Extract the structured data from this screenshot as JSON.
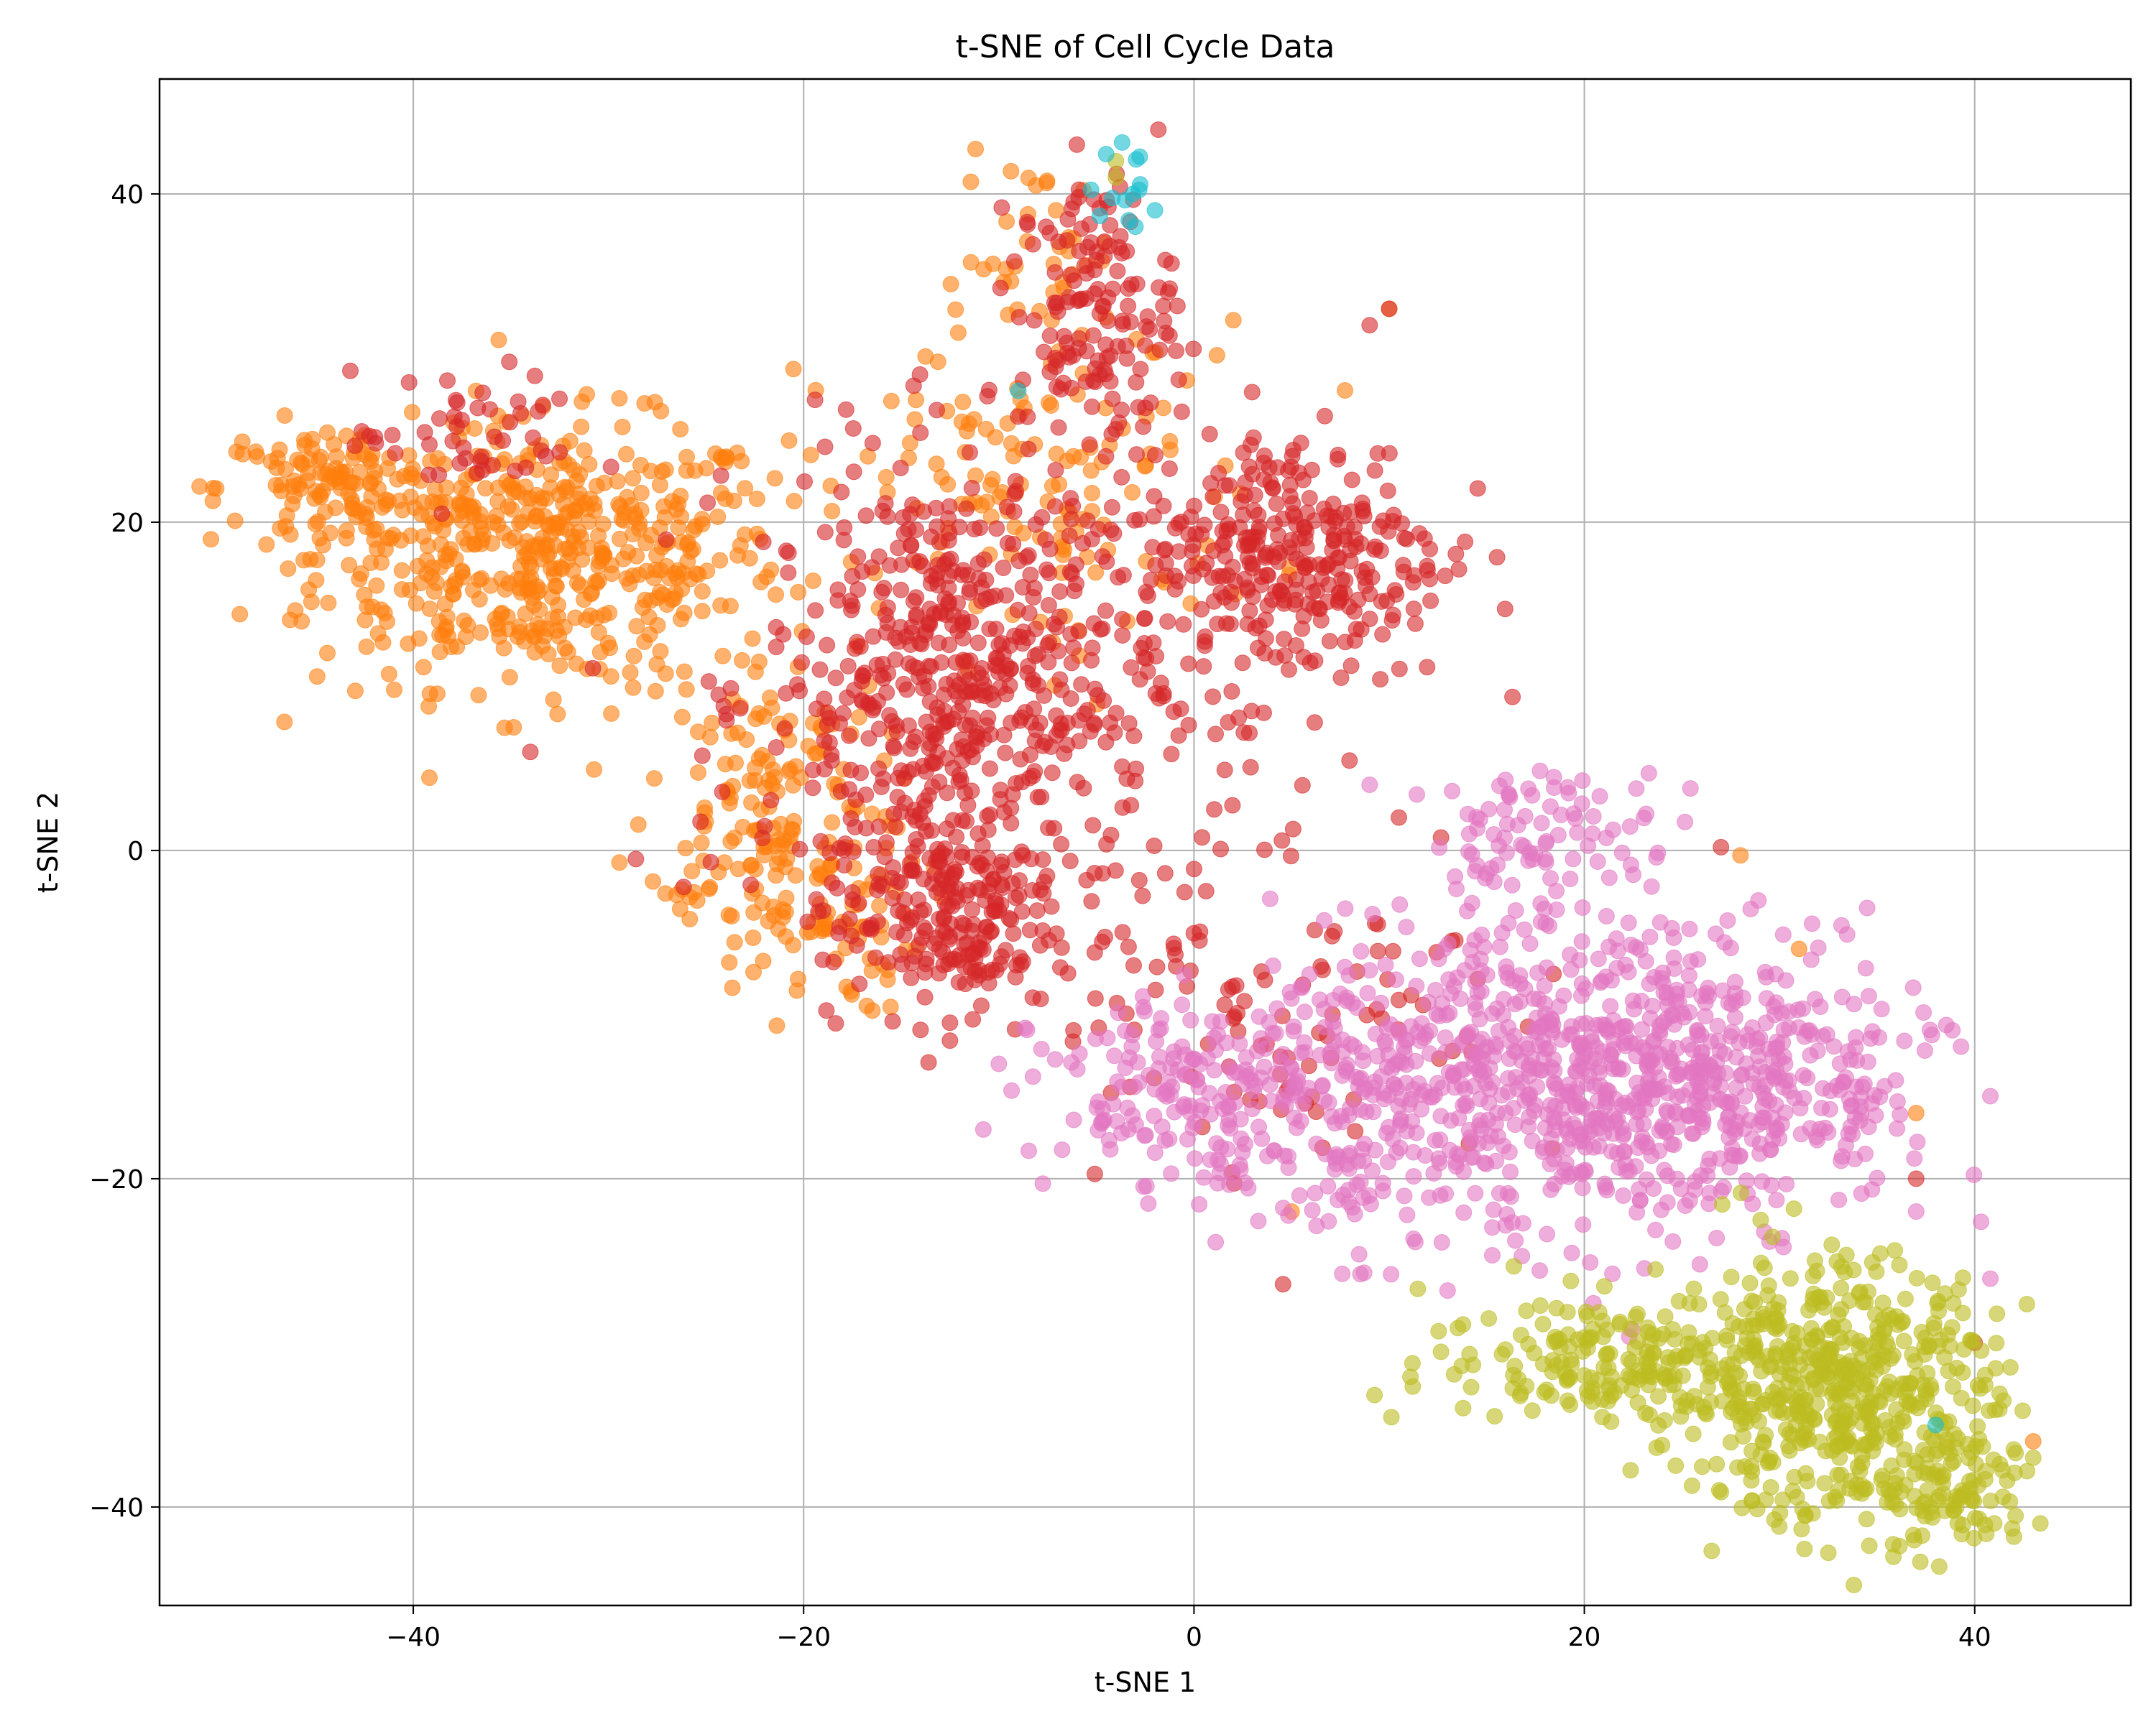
{
  "chart_data": {
    "type": "scatter",
    "title": "t-SNE of Cell Cycle Data",
    "xlabel": "t-SNE 1",
    "ylabel": "t-SNE 2",
    "xlim": [
      -53,
      48
    ],
    "ylim": [
      -46,
      47
    ],
    "xticks": [
      -40,
      -20,
      0,
      20,
      40
    ],
    "yticks": [
      -40,
      -20,
      0,
      20,
      40
    ],
    "xtick_labels": [
      "−40",
      "−20",
      "0",
      "20",
      "40"
    ],
    "ytick_labels": [
      "−40",
      "−20",
      "0",
      "20",
      "40"
    ],
    "grid": true,
    "legend": "none",
    "marker_alpha": 0.6,
    "series": [
      {
        "color": "#ff7f0e",
        "clusters": [
          {
            "center": [
              -33,
              18
            ],
            "spread": [
              6,
              4
            ],
            "n": 520
          },
          {
            "center": [
              -44,
              22
            ],
            "spread": [
              3,
              2
            ],
            "n": 120
          },
          {
            "center": [
              -22,
              4
            ],
            "spread": [
              3,
              4
            ],
            "n": 120
          },
          {
            "center": [
              -20,
              -4
            ],
            "spread": [
              3,
              3
            ],
            "n": 100
          },
          {
            "center": [
              -8,
              22
            ],
            "spread": [
              6,
              5
            ],
            "n": 140
          },
          {
            "center": [
              -8,
              36
            ],
            "spread": [
              2,
              3
            ],
            "n": 40
          }
        ],
        "points": [
          [
            -48,
            24
          ],
          [
            10,
            33
          ],
          [
            37,
            -16
          ],
          [
            43,
            -36
          ],
          [
            28,
            -0.3
          ],
          [
            31,
            -6
          ],
          [
            5,
            -22
          ]
        ]
      },
      {
        "color": "#d62728",
        "clusters": [
          {
            "center": [
              -12,
              10
            ],
            "spread": [
              5,
              7
            ],
            "n": 600
          },
          {
            "center": [
              5,
              18
            ],
            "spread": [
              4,
              4
            ],
            "n": 320
          },
          {
            "center": [
              -5,
              33
            ],
            "spread": [
              2,
              4
            ],
            "n": 140
          },
          {
            "center": [
              -13,
              -4
            ],
            "spread": [
              3,
              3
            ],
            "n": 200
          },
          {
            "center": [
              -37,
              25
            ],
            "spread": [
              3,
              2
            ],
            "n": 50
          },
          {
            "center": [
              4,
              -8
            ],
            "spread": [
              6,
              6
            ],
            "n": 120
          }
        ],
        "points": [
          [
            9,
            32
          ],
          [
            10,
            33
          ],
          [
            27,
            0.2
          ],
          [
            40,
            -30
          ],
          [
            -6,
            43
          ],
          [
            37,
            -20
          ],
          [
            -34,
            6
          ]
        ]
      },
      {
        "color": "#e377c2",
        "clusters": [
          {
            "center": [
              18,
              -14
            ],
            "spread": [
              7,
              5
            ],
            "n": 700
          },
          {
            "center": [
              28,
              -14
            ],
            "spread": [
              5,
              4
            ],
            "n": 280
          },
          {
            "center": [
              2,
              -15
            ],
            "spread": [
              5,
              3
            ],
            "n": 240
          },
          {
            "center": [
              18,
              1
            ],
            "spread": [
              3,
              2
            ],
            "n": 80
          }
        ],
        "points": [
          [
            -10,
            -13
          ],
          [
            37,
            -22
          ],
          [
            9,
            4
          ]
        ]
      },
      {
        "color": "#bcbd22",
        "clusters": [
          {
            "center": [
              33,
              -33
            ],
            "spread": [
              4,
              4
            ],
            "n": 520
          },
          {
            "center": [
              22,
              -31
            ],
            "spread": [
              5,
              2
            ],
            "n": 200
          },
          {
            "center": [
              39,
              -39
            ],
            "spread": [
              2,
              2
            ],
            "n": 80
          }
        ],
        "points": [
          [
            -4,
            42
          ],
          [
            -4,
            41
          ],
          [
            43,
            -37
          ],
          [
            41,
            -41
          ]
        ]
      },
      {
        "color": "#17becf",
        "clusters": [
          {
            "center": [
              -3.5,
              40.5
            ],
            "spread": [
              1,
              1
            ],
            "n": 12
          }
        ],
        "points": [
          [
            -2,
            39
          ],
          [
            -3,
            38
          ],
          [
            -9,
            28
          ],
          [
            38,
            -35
          ]
        ]
      }
    ]
  }
}
